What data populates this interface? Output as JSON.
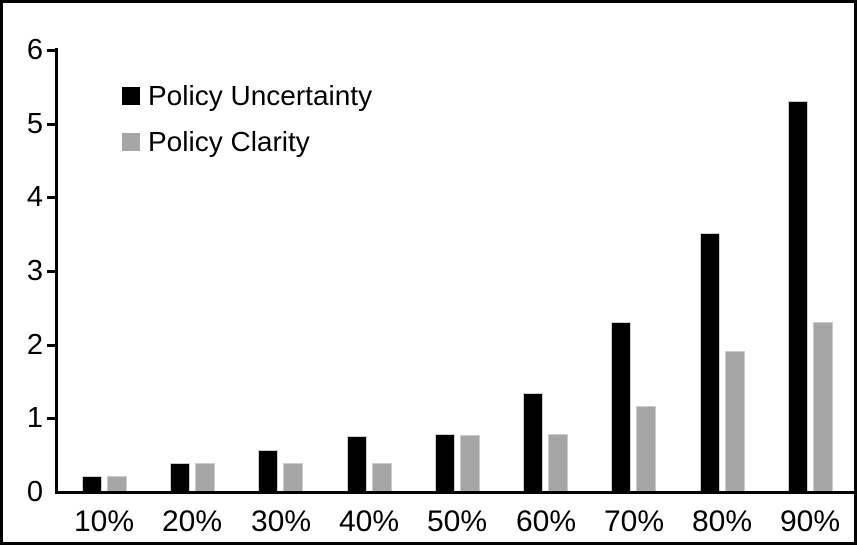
{
  "chart_data": {
    "type": "bar",
    "title": "",
    "xlabel": "",
    "ylabel": "",
    "categories": [
      "10%",
      "20%",
      "30%",
      "40%",
      "50%",
      "60%",
      "70%",
      "80%",
      "90%"
    ],
    "series": [
      {
        "name": "Policy Uncertainty",
        "color": "#000000",
        "values": [
          0.2,
          0.38,
          0.55,
          0.75,
          0.77,
          1.33,
          2.3,
          3.5,
          5.3
        ]
      },
      {
        "name": "Policy Clarity",
        "color": "#a6a6a6",
        "values": [
          0.2,
          0.38,
          0.38,
          0.38,
          0.76,
          0.77,
          1.15,
          1.9,
          2.3
        ]
      }
    ],
    "ylim": [
      0,
      6
    ],
    "yticks": [
      0,
      1,
      2,
      3,
      4,
      5,
      6
    ],
    "grid": false,
    "legend_position": "inside-top-left",
    "frame_color": "#000000",
    "background_color": "#ffffff"
  }
}
